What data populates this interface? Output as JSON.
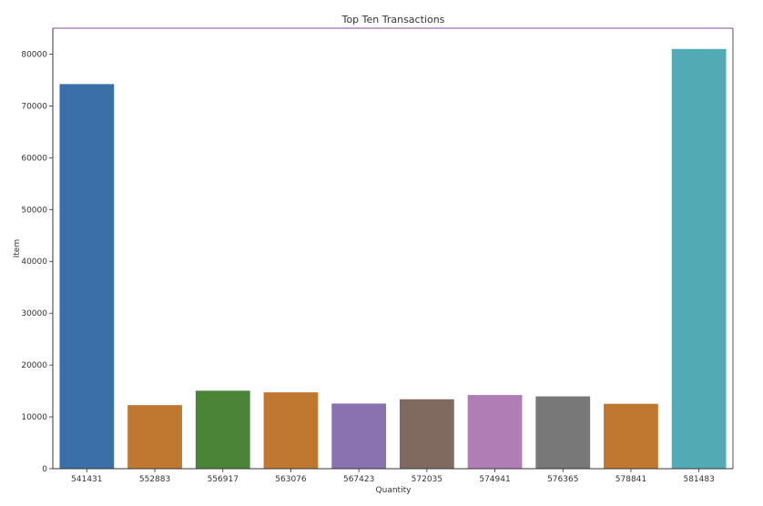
{
  "chart_data": {
    "type": "bar",
    "title": "Top Ten Transactions",
    "xlabel": "Quantity",
    "ylabel": "Item",
    "categories": [
      "541431",
      "552883",
      "556917",
      "563076",
      "567423",
      "572035",
      "574941",
      "576365",
      "578841",
      "581483"
    ],
    "values": [
      74215,
      12266,
      15049,
      14730,
      12572,
      13392,
      14218,
      13956,
      12522,
      80995
    ],
    "ylim": [
      0,
      85000
    ],
    "yticks": [
      "0",
      "10000",
      "20000",
      "30000",
      "40000",
      "50000",
      "60000",
      "70000",
      "80000"
    ],
    "colors": [
      "#3a6fa7",
      "#c07830",
      "#4a8436",
      "#c07830",
      "#8a72b0",
      "#806a60",
      "#b07eb5",
      "#787878",
      "#c07830",
      "#52aab5"
    ],
    "grid": false,
    "legend": "none",
    "frame_color": "#8a4a9a"
  }
}
